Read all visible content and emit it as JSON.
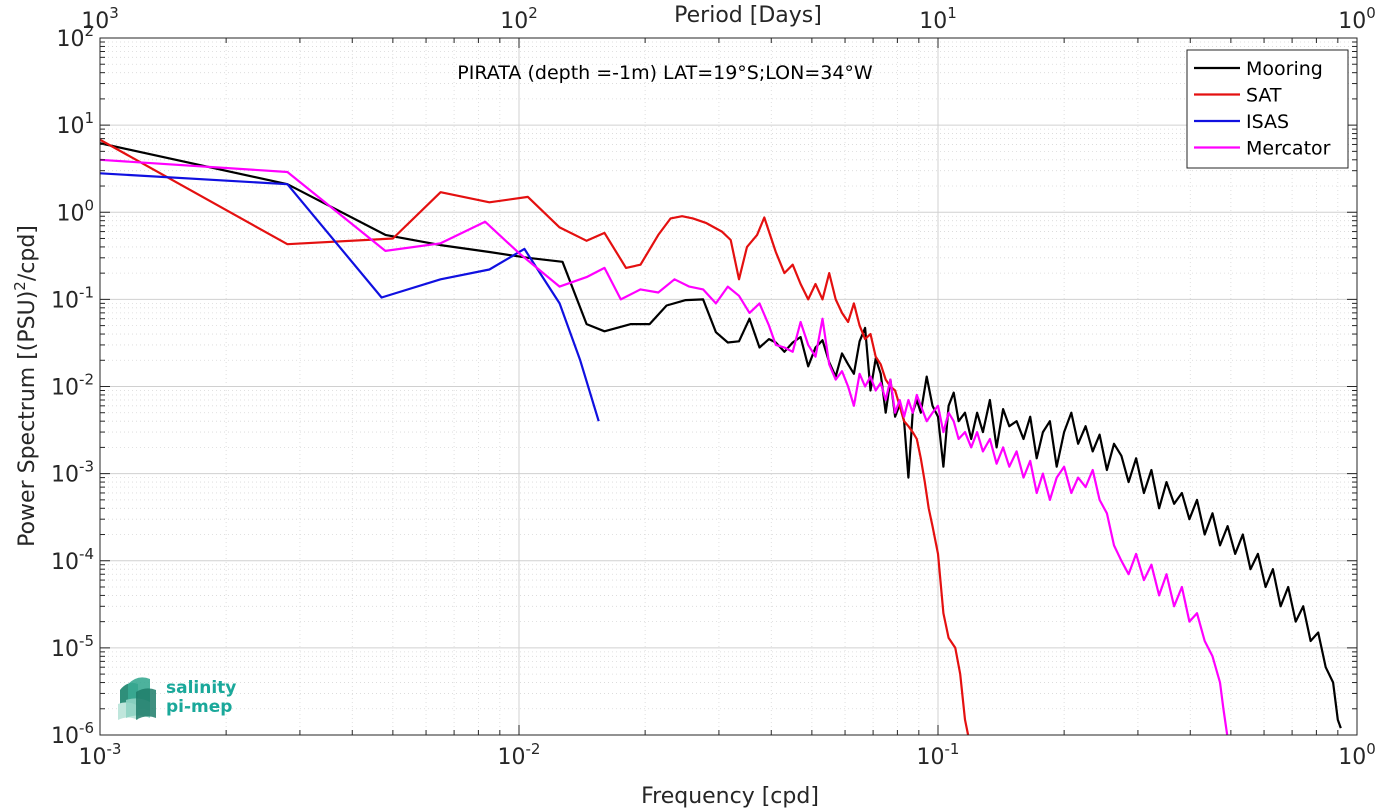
{
  "chart_data": {
    "type": "line",
    "title": "PIRATA (depth =-1m) LAT=19°S;LON=34°W",
    "xlabel": "Frequency [cpd]",
    "ylabel_parts": {
      "pre": "Power Spectrum [(PSU)",
      "sup": "2",
      "post": "/cpd]"
    },
    "top_xlabel": "Period [Days]",
    "x_scale": "log",
    "y_scale": "log",
    "xlim": [
      0.001,
      1
    ],
    "ylim": [
      1e-06,
      100
    ],
    "grid": "on (major and minor)",
    "legend_placement": "top-right",
    "x_ticks": [
      {
        "value": 0.001,
        "base": "10",
        "exp": "-3"
      },
      {
        "value": 0.01,
        "base": "10",
        "exp": "-2"
      },
      {
        "value": 0.1,
        "base": "10",
        "exp": "-1"
      },
      {
        "value": 1,
        "base": "10",
        "exp": "0"
      }
    ],
    "y_ticks": [
      {
        "value": 1e-06,
        "base": "10",
        "exp": "-6"
      },
      {
        "value": 1e-05,
        "base": "10",
        "exp": "-5"
      },
      {
        "value": 0.0001,
        "base": "10",
        "exp": "-4"
      },
      {
        "value": 0.001,
        "base": "10",
        "exp": "-3"
      },
      {
        "value": 0.01,
        "base": "10",
        "exp": "-2"
      },
      {
        "value": 0.1,
        "base": "10",
        "exp": "-1"
      },
      {
        "value": 1,
        "base": "10",
        "exp": "0"
      },
      {
        "value": 10,
        "base": "10",
        "exp": "1"
      },
      {
        "value": 100,
        "base": "10",
        "exp": "2"
      }
    ],
    "top_ticks": [
      {
        "value": 0.001,
        "base": "10",
        "exp": "3"
      },
      {
        "value": 0.01,
        "base": "10",
        "exp": "2"
      },
      {
        "value": 0.1,
        "base": "10",
        "exp": "1"
      },
      {
        "value": 1,
        "base": "10",
        "exp": "0"
      }
    ],
    "series": [
      {
        "name": "Mooring",
        "color": "#000000",
        "points": [
          [
            0.001,
            6.2
          ],
          [
            0.0028,
            2.1
          ],
          [
            0.0048,
            0.55
          ],
          [
            0.0065,
            0.42
          ],
          [
            0.0085,
            0.35
          ],
          [
            0.0105,
            0.3
          ],
          [
            0.0127,
            0.27
          ],
          [
            0.0145,
            0.052
          ],
          [
            0.016,
            0.043
          ],
          [
            0.0185,
            0.052
          ],
          [
            0.0205,
            0.052
          ],
          [
            0.0225,
            0.085
          ],
          [
            0.025,
            0.098
          ],
          [
            0.0275,
            0.1
          ],
          [
            0.0295,
            0.042
          ],
          [
            0.0315,
            0.032
          ],
          [
            0.0335,
            0.033
          ],
          [
            0.0355,
            0.06
          ],
          [
            0.0375,
            0.028
          ],
          [
            0.0395,
            0.035
          ],
          [
            0.041,
            0.032
          ],
          [
            0.043,
            0.025
          ],
          [
            0.045,
            0.032
          ],
          [
            0.047,
            0.037
          ],
          [
            0.049,
            0.017
          ],
          [
            0.051,
            0.028
          ],
          [
            0.053,
            0.034
          ],
          [
            0.055,
            0.019
          ],
          [
            0.057,
            0.013
          ],
          [
            0.059,
            0.024
          ],
          [
            0.061,
            0.018
          ],
          [
            0.063,
            0.014
          ],
          [
            0.065,
            0.033
          ],
          [
            0.067,
            0.047
          ],
          [
            0.069,
            0.009
          ],
          [
            0.071,
            0.021
          ],
          [
            0.073,
            0.014
          ],
          [
            0.075,
            0.005
          ],
          [
            0.077,
            0.012
          ],
          [
            0.079,
            0.0045
          ],
          [
            0.081,
            0.0062
          ],
          [
            0.083,
            0.004
          ],
          [
            0.085,
            0.0009
          ],
          [
            0.087,
            0.005
          ],
          [
            0.089,
            0.007
          ],
          [
            0.091,
            0.005
          ],
          [
            0.094,
            0.013
          ],
          [
            0.097,
            0.006
          ],
          [
            0.1,
            0.0045
          ],
          [
            0.103,
            0.0012
          ],
          [
            0.106,
            0.006
          ],
          [
            0.109,
            0.0085
          ],
          [
            0.112,
            0.004
          ],
          [
            0.116,
            0.005
          ],
          [
            0.12,
            0.0025
          ],
          [
            0.124,
            0.005
          ],
          [
            0.128,
            0.003
          ],
          [
            0.133,
            0.007
          ],
          [
            0.138,
            0.002
          ],
          [
            0.143,
            0.0055
          ],
          [
            0.148,
            0.0035
          ],
          [
            0.154,
            0.004
          ],
          [
            0.16,
            0.0025
          ],
          [
            0.166,
            0.0045
          ],
          [
            0.172,
            0.0015
          ],
          [
            0.178,
            0.003
          ],
          [
            0.185,
            0.004
          ],
          [
            0.192,
            0.0012
          ],
          [
            0.2,
            0.003
          ],
          [
            0.208,
            0.005
          ],
          [
            0.216,
            0.0022
          ],
          [
            0.225,
            0.0035
          ],
          [
            0.234,
            0.0018
          ],
          [
            0.243,
            0.0028
          ],
          [
            0.253,
            0.0011
          ],
          [
            0.263,
            0.0022
          ],
          [
            0.274,
            0.0016
          ],
          [
            0.285,
            0.0008
          ],
          [
            0.297,
            0.0015
          ],
          [
            0.31,
            0.0006
          ],
          [
            0.323,
            0.0011
          ],
          [
            0.337,
            0.0004
          ],
          [
            0.351,
            0.0008
          ],
          [
            0.366,
            0.00045
          ],
          [
            0.382,
            0.0006
          ],
          [
            0.398,
            0.0003
          ],
          [
            0.415,
            0.0005
          ],
          [
            0.433,
            0.0002
          ],
          [
            0.452,
            0.00035
          ],
          [
            0.471,
            0.00015
          ],
          [
            0.491,
            0.00025
          ],
          [
            0.512,
            0.00012
          ],
          [
            0.534,
            0.0002
          ],
          [
            0.557,
            8e-05
          ],
          [
            0.58,
            0.00012
          ],
          [
            0.605,
            5e-05
          ],
          [
            0.63,
            8e-05
          ],
          [
            0.657,
            3e-05
          ],
          [
            0.685,
            5e-05
          ],
          [
            0.714,
            2e-05
          ],
          [
            0.744,
            3e-05
          ],
          [
            0.775,
            1.2e-05
          ],
          [
            0.808,
            1.5e-05
          ],
          [
            0.842,
            6e-06
          ],
          [
            0.877,
            4e-06
          ],
          [
            0.9,
            1.5e-06
          ],
          [
            0.915,
            1.2e-06
          ]
        ]
      },
      {
        "name": "SAT",
        "color": "#e41010",
        "points": [
          [
            0.001,
            6.8
          ],
          [
            0.0028,
            0.43
          ],
          [
            0.005,
            0.5
          ],
          [
            0.0065,
            1.7
          ],
          [
            0.0085,
            1.3
          ],
          [
            0.0105,
            1.5
          ],
          [
            0.0125,
            0.67
          ],
          [
            0.0145,
            0.47
          ],
          [
            0.016,
            0.58
          ],
          [
            0.018,
            0.23
          ],
          [
            0.0195,
            0.25
          ],
          [
            0.0215,
            0.55
          ],
          [
            0.023,
            0.85
          ],
          [
            0.0245,
            0.9
          ],
          [
            0.026,
            0.85
          ],
          [
            0.028,
            0.75
          ],
          [
            0.0305,
            0.6
          ],
          [
            0.032,
            0.48
          ],
          [
            0.0335,
            0.17
          ],
          [
            0.035,
            0.4
          ],
          [
            0.037,
            0.55
          ],
          [
            0.0385,
            0.87
          ],
          [
            0.0395,
            0.6
          ],
          [
            0.041,
            0.35
          ],
          [
            0.043,
            0.2
          ],
          [
            0.045,
            0.25
          ],
          [
            0.047,
            0.15
          ],
          [
            0.049,
            0.1
          ],
          [
            0.051,
            0.15
          ],
          [
            0.053,
            0.1
          ],
          [
            0.055,
            0.2
          ],
          [
            0.057,
            0.1
          ],
          [
            0.059,
            0.07
          ],
          [
            0.061,
            0.055
          ],
          [
            0.063,
            0.09
          ],
          [
            0.065,
            0.05
          ],
          [
            0.067,
            0.035
          ],
          [
            0.069,
            0.04
          ],
          [
            0.071,
            0.022
          ],
          [
            0.073,
            0.018
          ],
          [
            0.075,
            0.012
          ],
          [
            0.077,
            0.01
          ],
          [
            0.079,
            0.009
          ],
          [
            0.081,
            0.006
          ],
          [
            0.083,
            0.004
          ],
          [
            0.085,
            0.0035
          ],
          [
            0.087,
            0.003
          ],
          [
            0.089,
            0.0025
          ],
          [
            0.091,
            0.0015
          ],
          [
            0.093,
            0.0008
          ],
          [
            0.095,
            0.0004
          ],
          [
            0.097,
            0.00025
          ],
          [
            0.1,
            0.00012
          ],
          [
            0.103,
            2.5e-05
          ],
          [
            0.106,
            1.3e-05
          ],
          [
            0.11,
            1e-05
          ],
          [
            0.113,
            5e-06
          ],
          [
            0.116,
            1.5e-06
          ],
          [
            0.118,
            1e-06
          ]
        ]
      },
      {
        "name": "ISAS",
        "color": "#1010e0",
        "points": [
          [
            0.001,
            2.8
          ],
          [
            0.0028,
            2.1
          ],
          [
            0.0047,
            0.105
          ],
          [
            0.0065,
            0.17
          ],
          [
            0.0085,
            0.22
          ],
          [
            0.0103,
            0.38
          ],
          [
            0.0125,
            0.09
          ],
          [
            0.014,
            0.02
          ],
          [
            0.0155,
            0.004
          ]
        ]
      },
      {
        "name": "Mercator",
        "color": "#ff00ff",
        "points": [
          [
            0.001,
            4
          ],
          [
            0.0028,
            2.9
          ],
          [
            0.0048,
            0.36
          ],
          [
            0.0065,
            0.44
          ],
          [
            0.0083,
            0.78
          ],
          [
            0.01,
            0.34
          ],
          [
            0.0125,
            0.14
          ],
          [
            0.0145,
            0.18
          ],
          [
            0.016,
            0.23
          ],
          [
            0.0175,
            0.1
          ],
          [
            0.0195,
            0.13
          ],
          [
            0.0215,
            0.12
          ],
          [
            0.0235,
            0.17
          ],
          [
            0.0255,
            0.14
          ],
          [
            0.0275,
            0.13
          ],
          [
            0.0295,
            0.09
          ],
          [
            0.0315,
            0.14
          ],
          [
            0.0335,
            0.11
          ],
          [
            0.0355,
            0.07
          ],
          [
            0.0375,
            0.09
          ],
          [
            0.0395,
            0.05
          ],
          [
            0.041,
            0.03
          ],
          [
            0.043,
            0.028
          ],
          [
            0.045,
            0.025
          ],
          [
            0.047,
            0.055
          ],
          [
            0.049,
            0.03
          ],
          [
            0.051,
            0.022
          ],
          [
            0.053,
            0.06
          ],
          [
            0.055,
            0.018
          ],
          [
            0.057,
            0.012
          ],
          [
            0.059,
            0.015
          ],
          [
            0.061,
            0.01
          ],
          [
            0.063,
            0.006
          ],
          [
            0.065,
            0.014
          ],
          [
            0.067,
            0.01
          ],
          [
            0.069,
            0.013
          ],
          [
            0.071,
            0.009
          ],
          [
            0.073,
            0.011
          ],
          [
            0.075,
            0.007
          ],
          [
            0.077,
            0.012
          ],
          [
            0.079,
            0.005
          ],
          [
            0.081,
            0.007
          ],
          [
            0.083,
            0.0045
          ],
          [
            0.085,
            0.007
          ],
          [
            0.087,
            0.005
          ],
          [
            0.089,
            0.008
          ],
          [
            0.091,
            0.006
          ],
          [
            0.094,
            0.004
          ],
          [
            0.097,
            0.005
          ],
          [
            0.1,
            0.006
          ],
          [
            0.103,
            0.003
          ],
          [
            0.106,
            0.005
          ],
          [
            0.109,
            0.004
          ],
          [
            0.112,
            0.0025
          ],
          [
            0.116,
            0.003
          ],
          [
            0.12,
            0.002
          ],
          [
            0.124,
            0.003
          ],
          [
            0.128,
            0.0018
          ],
          [
            0.133,
            0.0025
          ],
          [
            0.138,
            0.0013
          ],
          [
            0.143,
            0.002
          ],
          [
            0.148,
            0.0012
          ],
          [
            0.154,
            0.0018
          ],
          [
            0.16,
            0.0009
          ],
          [
            0.166,
            0.0014
          ],
          [
            0.172,
            0.0006
          ],
          [
            0.178,
            0.001
          ],
          [
            0.185,
            0.0005
          ],
          [
            0.192,
            0.0009
          ],
          [
            0.2,
            0.0012
          ],
          [
            0.208,
            0.0006
          ],
          [
            0.216,
            0.0009
          ],
          [
            0.225,
            0.0007
          ],
          [
            0.234,
            0.0011
          ],
          [
            0.243,
            0.0005
          ],
          [
            0.253,
            0.00035
          ],
          [
            0.263,
            0.00015
          ],
          [
            0.274,
            0.0001
          ],
          [
            0.285,
            7e-05
          ],
          [
            0.297,
            0.00012
          ],
          [
            0.31,
            6e-05
          ],
          [
            0.323,
            9e-05
          ],
          [
            0.337,
            4e-05
          ],
          [
            0.351,
            7e-05
          ],
          [
            0.366,
            3e-05
          ],
          [
            0.382,
            5e-05
          ],
          [
            0.398,
            2e-05
          ],
          [
            0.415,
            2.5e-05
          ],
          [
            0.433,
            1.2e-05
          ],
          [
            0.452,
            8e-06
          ],
          [
            0.471,
            4e-06
          ],
          [
            0.48,
            2e-06
          ],
          [
            0.49,
            1e-06
          ]
        ]
      }
    ]
  },
  "logo": {
    "line1": "salinity",
    "line2": "pi-mep"
  }
}
